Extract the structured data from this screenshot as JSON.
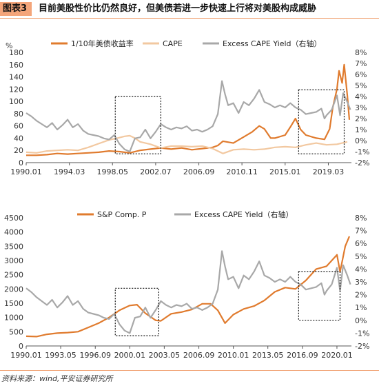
{
  "figure": {
    "label": "图表3",
    "title": "目前美股性价比仍然良好，但美债若进一步快速上行将对美股构成威胁"
  },
  "source": "资料来源：wind,平安证券研究所",
  "colors": {
    "orange": "#e07b2e",
    "tan": "#f2c8a0",
    "gray": "#a8a8a8",
    "badge": "#f4a57a"
  },
  "chart_data": [
    {
      "type": "line",
      "left_unit": "%",
      "ylim_left": [
        0,
        180
      ],
      "yticks_left": [
        0,
        20,
        40,
        60,
        80,
        100,
        120,
        140,
        160,
        180
      ],
      "ylim_right": [
        -2,
        8
      ],
      "yticks_right": [
        "-2%",
        "-1%",
        "0%",
        "1%",
        "2%",
        "3%",
        "4%",
        "5%",
        "6%",
        "7%",
        "8%"
      ],
      "xlim": [
        1990.0,
        2021.4
      ],
      "xtick_labels": [
        "1990.01",
        "1994.03",
        "1998.05",
        "2002.07",
        "2006.09",
        "2010.11",
        "2015.01",
        "2019.03"
      ],
      "xtick_values": [
        1990.0,
        1994.17,
        1998.33,
        2002.5,
        2006.67,
        2010.83,
        2015.0,
        2019.17
      ],
      "legend": [
        "1/10年美债收益率",
        "CAPE",
        "Excess CAPE Yield（右轴）"
      ],
      "highlight_boxes": [
        {
          "x0": 1998.6,
          "x1": 2003.0,
          "y0": -1.2,
          "y1": 4.0
        },
        {
          "x0": 2016.3,
          "x1": 2020.7,
          "y0": -1.2,
          "y1": 4.6
        }
      ],
      "series": [
        {
          "name": "1/10年美债收益率",
          "axis": "left",
          "color": "orange",
          "x": [
            1990.0,
            1991.0,
            1992.0,
            1993.0,
            1994.0,
            1995.0,
            1996.0,
            1997.0,
            1998.0,
            1999.0,
            2000.0,
            2001.0,
            2002.0,
            2003.0,
            2004.0,
            2005.0,
            2006.0,
            2007.0,
            2008.0,
            2008.5,
            2009.0,
            2010.0,
            2011.0,
            2011.8,
            2012.5,
            2013.0,
            2013.6,
            2014.0,
            2015.0,
            2015.5,
            2016.0,
            2016.5,
            2017.0,
            2018.0,
            2018.8,
            2019.3,
            2019.6,
            2020.0,
            2020.2,
            2020.5,
            2020.7,
            2021.0,
            2021.2
          ],
          "y": [
            12,
            12,
            13,
            15,
            14,
            15,
            16,
            17,
            19,
            18,
            16,
            20,
            22,
            24,
            22,
            24,
            21,
            23,
            25,
            28,
            35,
            32,
            42,
            50,
            60,
            55,
            40,
            40,
            45,
            58,
            72,
            54,
            45,
            40,
            38,
            55,
            90,
            120,
            150,
            130,
            160,
            110,
            70
          ]
        },
        {
          "name": "CAPE",
          "axis": "left",
          "color": "tan",
          "x": [
            1990.0,
            1991.0,
            1992.0,
            1993.0,
            1994.0,
            1995.0,
            1996.0,
            1997.0,
            1998.0,
            1998.8,
            1999.5,
            2000.0,
            2000.5,
            2001.0,
            2002.0,
            2003.0,
            2004.0,
            2005.0,
            2006.0,
            2007.0,
            2008.0,
            2009.0,
            2010.0,
            2011.0,
            2012.0,
            2013.0,
            2014.0,
            2015.0,
            2016.0,
            2017.0,
            2018.0,
            2019.0,
            2020.0,
            2021.0
          ],
          "y": [
            17,
            16,
            19,
            20,
            21,
            20,
            25,
            31,
            37,
            40,
            43,
            44,
            40,
            34,
            30,
            24,
            27,
            27,
            26,
            27,
            23,
            15,
            21,
            22,
            21,
            22,
            25,
            26,
            25,
            29,
            32,
            29,
            30,
            34
          ]
        },
        {
          "name": "Excess CAPE Yield（右轴）",
          "axis": "right",
          "color": "gray",
          "x": [
            1990.0,
            1990.5,
            1991.0,
            1991.5,
            1992.0,
            1992.5,
            1993.0,
            1993.5,
            1994.0,
            1994.5,
            1995.0,
            1995.5,
            1996.0,
            1996.5,
            1997.0,
            1997.5,
            1998.0,
            1998.5,
            1999.0,
            1999.5,
            2000.0,
            2000.5,
            2001.0,
            2001.5,
            2002.0,
            2002.5,
            2003.0,
            2003.5,
            2004.0,
            2004.5,
            2005.0,
            2005.5,
            2006.0,
            2006.5,
            2007.0,
            2007.5,
            2008.0,
            2008.5,
            2008.9,
            2009.2,
            2009.5,
            2010.0,
            2010.5,
            2011.0,
            2011.5,
            2012.0,
            2012.5,
            2013.0,
            2013.5,
            2014.0,
            2014.5,
            2015.0,
            2015.5,
            2016.0,
            2016.5,
            2017.0,
            2017.5,
            2018.0,
            2018.5,
            2018.8,
            2019.0,
            2019.5,
            2020.0,
            2020.3,
            2020.6,
            2021.0,
            2021.3
          ],
          "y": [
            2.5,
            2.2,
            1.8,
            1.5,
            1.2,
            1.6,
            1.0,
            1.4,
            1.9,
            1.2,
            1.5,
            0.9,
            0.6,
            0.5,
            0.4,
            0.2,
            0.1,
            0.5,
            -0.3,
            -0.8,
            -1.0,
            0.2,
            0.3,
            1.0,
            0.2,
            0.8,
            1.5,
            1.2,
            1.0,
            1.2,
            1.1,
            1.3,
            0.9,
            1.0,
            0.8,
            1.0,
            1.3,
            2.4,
            5.4,
            4.2,
            3.2,
            3.4,
            2.5,
            3.5,
            3.2,
            3.8,
            4.6,
            3.5,
            3.3,
            3.0,
            3.2,
            3.0,
            3.4,
            3.0,
            2.8,
            2.4,
            2.5,
            2.6,
            2.9,
            2.0,
            2.3,
            2.8,
            4.1,
            2.3,
            4.3,
            3.5,
            2.8
          ]
        }
      ]
    },
    {
      "type": "line",
      "ylim_left": [
        0,
        4500
      ],
      "yticks_left": [
        0,
        500,
        1000,
        1500,
        2000,
        2500,
        3000,
        3500,
        4000,
        4500
      ],
      "ylim_right": [
        -2,
        8
      ],
      "yticks_right": [
        "-2%",
        "-1%",
        "0%",
        "1%",
        "2%",
        "3%",
        "4%",
        "5%",
        "6%",
        "7%",
        "8%"
      ],
      "xlim": [
        1990.0,
        2021.4
      ],
      "xtick_labels": [
        "1990.01",
        "1993.05",
        "1996.09",
        "2000.01",
        "2003.05",
        "2006.09",
        "2010.01",
        "2013.05",
        "2016.09",
        "2020.01"
      ],
      "xtick_values": [
        1990.0,
        1993.33,
        1996.67,
        2000.0,
        2003.33,
        2006.67,
        2010.0,
        2013.33,
        2016.67,
        2020.0
      ],
      "legend": [
        "S&P Comp. P",
        "Excess CAPE Yield（右轴）"
      ],
      "highlight_boxes": [
        {
          "x0": 1998.6,
          "x1": 2002.8,
          "y0": -1.2,
          "y1": 2.5
        },
        {
          "x0": 2016.3,
          "x1": 2020.3,
          "y0": 0.0,
          "y1": 3.8
        }
      ],
      "series": [
        {
          "name": "S&P Comp. P",
          "axis": "left",
          "color": "orange",
          "x": [
            1990.0,
            1991.0,
            1992.0,
            1993.0,
            1994.0,
            1995.0,
            1996.0,
            1997.0,
            1998.0,
            1999.0,
            2000.0,
            2000.7,
            2001.5,
            2002.5,
            2003.0,
            2004.0,
            2005.0,
            2006.0,
            2007.0,
            2007.8,
            2008.5,
            2009.2,
            2010.0,
            2011.0,
            2012.0,
            2013.0,
            2014.0,
            2015.0,
            2016.0,
            2017.0,
            2018.0,
            2019.0,
            2020.0,
            2020.3,
            2020.8,
            2021.2
          ],
          "y": [
            340,
            330,
            410,
            450,
            470,
            500,
            650,
            800,
            1000,
            1250,
            1420,
            1450,
            1150,
            900,
            880,
            1130,
            1190,
            1280,
            1480,
            1480,
            1250,
            800,
            1100,
            1300,
            1400,
            1600,
            1900,
            2050,
            2000,
            2300,
            2700,
            2800,
            3200,
            2600,
            3500,
            3850
          ]
        },
        {
          "name": "Excess CAPE Yield（右轴）",
          "axis": "right",
          "color": "gray",
          "x": [
            1990.0,
            1990.5,
            1991.0,
            1991.5,
            1992.0,
            1992.5,
            1993.0,
            1993.5,
            1994.0,
            1994.5,
            1995.0,
            1995.5,
            1996.0,
            1996.5,
            1997.0,
            1997.5,
            1998.0,
            1998.5,
            1999.0,
            1999.5,
            2000.0,
            2000.5,
            2001.0,
            2001.5,
            2002.0,
            2002.5,
            2003.0,
            2003.5,
            2004.0,
            2004.5,
            2005.0,
            2005.5,
            2006.0,
            2006.5,
            2007.0,
            2007.5,
            2008.0,
            2008.5,
            2008.9,
            2009.2,
            2009.5,
            2010.0,
            2010.5,
            2011.0,
            2011.5,
            2012.0,
            2012.5,
            2013.0,
            2013.5,
            2014.0,
            2014.5,
            2015.0,
            2015.5,
            2016.0,
            2016.5,
            2017.0,
            2017.5,
            2018.0,
            2018.5,
            2018.8,
            2019.0,
            2019.5,
            2020.0,
            2020.3,
            2020.6,
            2021.0,
            2021.3
          ],
          "y": [
            2.5,
            2.2,
            1.8,
            1.5,
            1.2,
            1.6,
            1.0,
            1.4,
            1.9,
            1.2,
            1.5,
            0.9,
            0.6,
            0.5,
            0.4,
            0.2,
            0.1,
            0.5,
            -0.3,
            -0.8,
            -1.0,
            0.2,
            0.3,
            1.0,
            0.2,
            0.8,
            1.5,
            1.2,
            1.0,
            1.2,
            1.1,
            1.3,
            0.9,
            1.0,
            0.8,
            1.0,
            1.3,
            2.4,
            5.4,
            4.2,
            3.2,
            3.4,
            2.5,
            3.5,
            3.2,
            3.8,
            4.6,
            3.5,
            3.3,
            3.0,
            3.2,
            3.0,
            3.4,
            3.0,
            2.8,
            2.4,
            2.5,
            2.6,
            2.9,
            2.0,
            2.3,
            2.8,
            4.1,
            2.3,
            4.3,
            3.5,
            2.8
          ]
        }
      ]
    }
  ]
}
